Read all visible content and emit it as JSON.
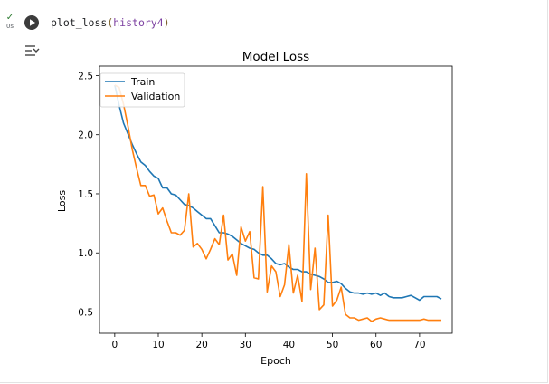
{
  "cell": {
    "status_icon": "check-icon",
    "exec_time": "0s",
    "run_icon": "play-icon",
    "code": {
      "func": "plot_loss",
      "open_paren": "(",
      "arg": "history4",
      "close_paren": ")"
    },
    "output_toggle_icon": "output-collapse-icon"
  },
  "colors": {
    "train": "#1f77b4",
    "validation": "#ff7f0e",
    "status_ok": "#2e7d32"
  },
  "chart_data": {
    "type": "line",
    "title": "Model Loss",
    "xlabel": "Epoch",
    "ylabel": "Loss",
    "xlim": [
      -3.5,
      77.5
    ],
    "ylim": [
      0.32,
      2.58
    ],
    "xticks": [
      0,
      10,
      20,
      30,
      40,
      50,
      60,
      70
    ],
    "yticks": [
      0.5,
      1.0,
      1.5,
      2.0,
      2.5
    ],
    "ytick_labels": [
      "0.5",
      "1.0",
      "1.5",
      "2.0",
      "2.5"
    ],
    "legend_loc": "upper left",
    "grid": false,
    "series": [
      {
        "name": "Train",
        "color": "#1f77b4",
        "values": [
          2.42,
          2.25,
          2.1,
          2.01,
          1.92,
          1.84,
          1.77,
          1.74,
          1.69,
          1.65,
          1.63,
          1.55,
          1.55,
          1.5,
          1.49,
          1.45,
          1.41,
          1.4,
          1.38,
          1.35,
          1.32,
          1.29,
          1.29,
          1.23,
          1.17,
          1.17,
          1.16,
          1.14,
          1.11,
          1.08,
          1.06,
          1.04,
          1.03,
          1.0,
          0.98,
          0.98,
          0.95,
          0.91,
          0.9,
          0.91,
          0.88,
          0.86,
          0.86,
          0.84,
          0.84,
          0.82,
          0.81,
          0.8,
          0.78,
          0.75,
          0.75,
          0.76,
          0.74,
          0.7,
          0.67,
          0.66,
          0.66,
          0.65,
          0.66,
          0.65,
          0.66,
          0.64,
          0.66,
          0.63,
          0.62,
          0.62,
          0.62,
          0.63,
          0.64,
          0.62,
          0.6,
          0.63,
          0.63,
          0.63,
          0.63,
          0.61
        ]
      },
      {
        "name": "Validation",
        "color": "#ff7f0e",
        "values": [
          2.42,
          2.4,
          2.26,
          2.08,
          1.88,
          1.72,
          1.57,
          1.57,
          1.48,
          1.49,
          1.33,
          1.38,
          1.27,
          1.17,
          1.17,
          1.15,
          1.19,
          1.5,
          1.05,
          1.08,
          1.03,
          0.95,
          1.03,
          1.12,
          1.07,
          1.32,
          0.94,
          0.99,
          0.81,
          1.22,
          1.1,
          1.18,
          0.79,
          0.78,
          1.56,
          0.67,
          0.89,
          0.84,
          0.63,
          0.73,
          1.07,
          0.66,
          0.81,
          0.59,
          1.67,
          0.69,
          1.04,
          0.52,
          0.56,
          1.32,
          0.55,
          0.6,
          0.71,
          0.48,
          0.45,
          0.45,
          0.43,
          0.44,
          0.45,
          0.42,
          0.44,
          0.45,
          0.44,
          0.43,
          0.43,
          0.43,
          0.43,
          0.43,
          0.43,
          0.43,
          0.43,
          0.44,
          0.43,
          0.43,
          0.43,
          0.43
        ]
      }
    ]
  }
}
